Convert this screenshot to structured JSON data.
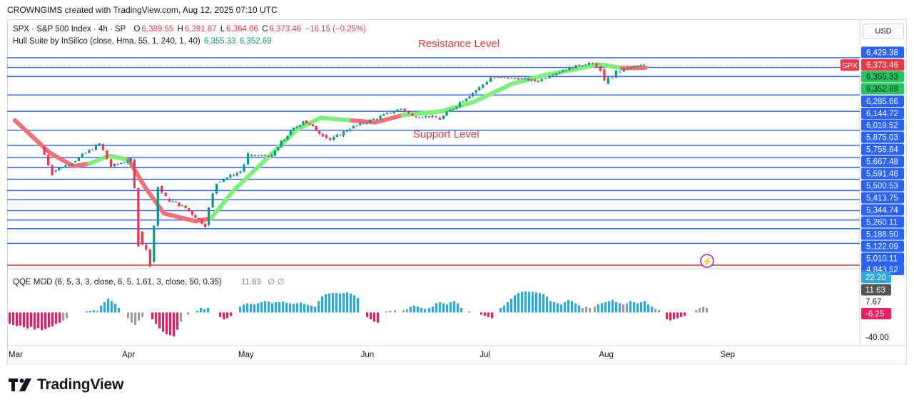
{
  "header": {
    "credit": "CROWNGIMS created with TradingView.com, Aug 12, 2025 07:10 UTC"
  },
  "symbol_legend": {
    "title": "SPX · S&P 500 Index · 4h · SP",
    "o_label": "O",
    "o_value": "6,389.55",
    "h_label": "H",
    "h_value": "6,391.87",
    "l_label": "L",
    "l_value": "6,364.06",
    "c_label": "C",
    "c_value": "6,373.46",
    "change": "−16.15 (−0.25%)"
  },
  "hull_legend": {
    "label": "Hull Suite by InSilico (close, Hma, 55, 1, 240, 1, 40)",
    "value1": "6,355.33",
    "value2": "6,352.69"
  },
  "currency": "USD",
  "annotations": {
    "resistance": "Resistance Level",
    "support": "Support Level"
  },
  "qqe_legend": {
    "label": "QQE MOD (6, 5, 3, 3, close, 6, 5, 1.61, 3, close, 50, 0.35)",
    "value": "11.63",
    "icons": "∅ ∅"
  },
  "footer": {
    "brand": "TradingView"
  },
  "colors": {
    "hline": "#2962ff",
    "bull": "#089981",
    "bear": "#f23645",
    "hull_up": "#7ef07a",
    "hull_down": "#f07078",
    "qqe_blue": "#2ba9e1",
    "qqe_pink": "#e91e63",
    "qqe_gray": "#9e9e9e"
  },
  "chart_data": {
    "type": "candlestick",
    "timeframe": "4h",
    "x_axis": {
      "type": "time",
      "labels": [
        "Mar",
        "Apr",
        "May",
        "Jun",
        "Jul",
        "Aug",
        "Sep"
      ]
    },
    "y_range": [
      4830,
      6480
    ],
    "support_resistance_levels": [
      6429.38,
      6355.33,
      6285.66,
      6144.72,
      6019.52,
      5875.03,
      5758.84,
      5667.48,
      5591.46,
      5500.53,
      5413.75,
      5344.74,
      5260.11,
      5188.5,
      5122.09,
      5010.11
    ],
    "lowest_level": 4843.52,
    "price_scale_labels": [
      "6,429.38",
      "6,373.46",
      "6,355.33",
      "6,352.69",
      "6,285.66",
      "6,144.72",
      "6,019.52",
      "5,875.03",
      "5,758.84",
      "5,667.48",
      "5,591.46",
      "5,500.53",
      "5,413.75",
      "5,344.74",
      "5,260.11",
      "5,188.50",
      "5,122.09",
      "5,010.11",
      "4,843.52"
    ],
    "last_price": 6373.46,
    "last_price_tag": "SPX",
    "price_path": [
      [
        "2025-03-10",
        5750
      ],
      [
        "2025-03-13",
        5560
      ],
      [
        "2025-03-18",
        5630
      ],
      [
        "2025-03-25",
        5770
      ],
      [
        "2025-03-28",
        5600
      ],
      [
        "2025-04-02",
        5650
      ],
      [
        "2025-04-04",
        5100
      ],
      [
        "2025-04-07",
        4870
      ],
      [
        "2025-04-09",
        5450
      ],
      [
        "2025-04-11",
        5350
      ],
      [
        "2025-04-16",
        5280
      ],
      [
        "2025-04-21",
        5150
      ],
      [
        "2025-04-24",
        5480
      ],
      [
        "2025-04-30",
        5560
      ],
      [
        "2025-05-02",
        5680
      ],
      [
        "2025-05-08",
        5680
      ],
      [
        "2025-05-12",
        5840
      ],
      [
        "2025-05-16",
        5950
      ],
      [
        "2025-05-21",
        5840
      ],
      [
        "2025-05-23",
        5800
      ],
      [
        "2025-05-28",
        5890
      ],
      [
        "2025-06-03",
        5960
      ],
      [
        "2025-06-10",
        6040
      ],
      [
        "2025-06-13",
        5980
      ],
      [
        "2025-06-18",
        5980
      ],
      [
        "2025-06-20",
        5960
      ],
      [
        "2025-06-25",
        6090
      ],
      [
        "2025-06-30",
        6200
      ],
      [
        "2025-07-03",
        6280
      ],
      [
        "2025-07-10",
        6270
      ],
      [
        "2025-07-15",
        6250
      ],
      [
        "2025-07-18",
        6300
      ],
      [
        "2025-07-23",
        6350
      ],
      [
        "2025-07-28",
        6390
      ],
      [
        "2025-07-31",
        6340
      ],
      [
        "2025-08-01",
        6230
      ],
      [
        "2025-08-04",
        6320
      ],
      [
        "2025-08-07",
        6350
      ],
      [
        "2025-08-11",
        6373
      ]
    ],
    "hull_suite": [
      [
        "2025-03-03",
        5950,
        "down"
      ],
      [
        "2025-03-12",
        5700,
        "down"
      ],
      [
        "2025-03-18",
        5600,
        "down"
      ],
      [
        "2025-03-22",
        5620,
        "up"
      ],
      [
        "2025-03-27",
        5680,
        "up"
      ],
      [
        "2025-04-01",
        5650,
        "down"
      ],
      [
        "2025-04-05",
        5450,
        "down"
      ],
      [
        "2025-04-10",
        5240,
        "down"
      ],
      [
        "2025-04-18",
        5180,
        "down"
      ],
      [
        "2025-04-22",
        5200,
        "up"
      ],
      [
        "2025-04-28",
        5420,
        "up"
      ],
      [
        "2025-05-06",
        5650,
        "up"
      ],
      [
        "2025-05-14",
        5880,
        "up"
      ],
      [
        "2025-05-20",
        5970,
        "up"
      ],
      [
        "2025-05-28",
        5950,
        "down"
      ],
      [
        "2025-06-03",
        5935,
        "down"
      ],
      [
        "2025-06-10",
        5990,
        "up"
      ],
      [
        "2025-06-20",
        6020,
        "up"
      ],
      [
        "2025-06-28",
        6090,
        "up"
      ],
      [
        "2025-07-08",
        6230,
        "up"
      ],
      [
        "2025-07-16",
        6295,
        "up"
      ],
      [
        "2025-07-24",
        6340,
        "up"
      ],
      [
        "2025-07-30",
        6380,
        "up"
      ],
      [
        "2025-08-05",
        6350,
        "down"
      ],
      [
        "2025-08-11",
        6353,
        "down"
      ]
    ],
    "qqe_mod": {
      "scale_labels": [
        "22.20",
        "11.63",
        "7.67",
        "-6.25",
        "-40.00"
      ],
      "current": 11.63,
      "range": [
        -45,
        30
      ]
    }
  }
}
